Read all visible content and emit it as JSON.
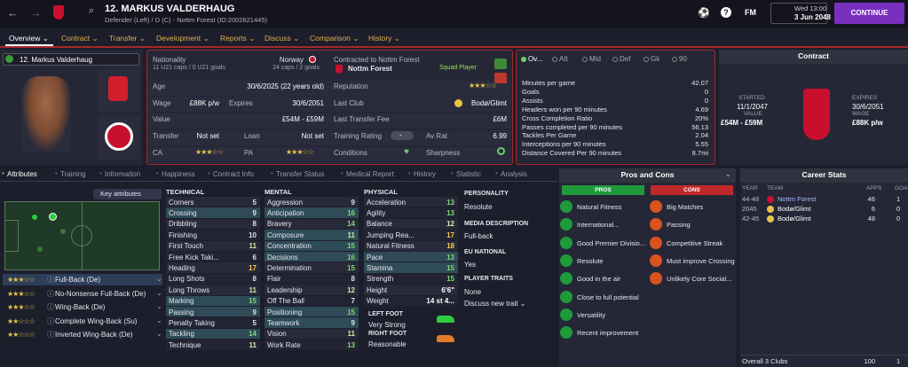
{
  "header": {
    "title": "12. MARKUS VALDERHAUG",
    "subtitle": "Defender (Left) / D (C) - Nottm Forest (ID:2002621445)",
    "logo": "FM",
    "day": "Wed 13:00",
    "date": "3 Jun 2048",
    "continue": "CONTINUE"
  },
  "nav": [
    "Overview",
    "Contract",
    "Transfer",
    "Development",
    "Reports",
    "Discuss",
    "Comparison",
    "History"
  ],
  "player_select": "12. Markus Valderhaug",
  "info": {
    "nationality_label": "Nationality",
    "nationality": "Norway",
    "u21": "11 U21 caps / 0 U21 goals",
    "caps": "24 caps / 2 goals",
    "contracted": "Contracted to Nottm Forest",
    "club": "Nottm Forest",
    "status": "Squad Player",
    "age_label": "Age",
    "age": "30/6/2025 (22 years old)",
    "wage_label": "Wage",
    "wage": "£88K p/w",
    "expires_label": "Expires",
    "expires": "30/6/2051",
    "value_label": "Value",
    "value": "£54M - £59M",
    "transfer_label": "Transfer",
    "transfer": "Not set",
    "loan_label": "Loan",
    "loan": "Not set",
    "ca_label": "CA",
    "pa_label": "PA",
    "reputation_label": "Reputation",
    "last_club_label": "Last Club",
    "last_club": "Bodø/Glimt",
    "fee_label": "Last Transfer Fee",
    "fee": "£6M",
    "training_label": "Training Rating",
    "training": "-",
    "av_rat_label": "Av Rat",
    "av_rat": "6.99",
    "conditions_label": "Conditions",
    "sharpness_label": "Sharpness"
  },
  "stats": {
    "tabs": [
      "Ov...",
      "Att",
      "Mid",
      "Def",
      "Gk",
      "90"
    ],
    "rows": [
      {
        "label": "Minutes per game",
        "value": 42.07
      },
      {
        "label": "Goals",
        "value": 0
      },
      {
        "label": "Assists",
        "value": 0
      },
      {
        "label": "Headers won per 90 minutes",
        "value": 4.69
      },
      {
        "label": "Cross Completion Ratio",
        "value": "20%"
      },
      {
        "label": "Passes completed per 90 minutes",
        "value": 56.13
      },
      {
        "label": "Tackles Per Game",
        "value": 2.04
      },
      {
        "label": "Interceptions per 90 minutes",
        "value": 5.55
      },
      {
        "label": "Distance Covered Per 90 minutes",
        "value": "8.7mi"
      }
    ]
  },
  "contract": {
    "title": "Contract",
    "started_label": "STARTED",
    "started": "11/1/2047",
    "value_label": "VALUE",
    "value": "£54M - £59M",
    "expires_label": "EXPIRES",
    "expires": "30/6/2051",
    "wage_label": "WAGE",
    "wage": "£88K p/w"
  },
  "subtabs": [
    "Attributes",
    "Training",
    "Information",
    "Happiness",
    "Contract Info",
    "Transfer Status",
    "Medical Report",
    "History",
    "Statistic",
    "Analysis"
  ],
  "key_attributes": "Key attributes",
  "roles": [
    "Full-Back (De)",
    "No-Nonsense Full-Back (De)",
    "Wing-Back (De)",
    "Complete Wing-Back (Su)",
    "Inverted Wing-Back (De)"
  ],
  "attributes": {
    "technical": {
      "title": "TECHNICAL",
      "rows": [
        {
          "name": "Corners",
          "value": 5
        },
        {
          "name": "Crossing",
          "value": 9
        },
        {
          "name": "Dribbling",
          "value": 8
        },
        {
          "name": "Finishing",
          "value": 10
        },
        {
          "name": "First Touch",
          "value": 11
        },
        {
          "name": "Free Kick Taki...",
          "value": 6
        },
        {
          "name": "Heading",
          "value": 17
        },
        {
          "name": "Long Shots",
          "value": 8
        },
        {
          "name": "Long Throws",
          "value": 11
        },
        {
          "name": "Marking",
          "value": 15
        },
        {
          "name": "Passing",
          "value": 9
        },
        {
          "name": "Penalty Taking",
          "value": 5
        },
        {
          "name": "Tackling",
          "value": 14
        },
        {
          "name": "Technique",
          "value": 11
        }
      ]
    },
    "mental": {
      "title": "MENTAL",
      "rows": [
        {
          "name": "Aggression",
          "value": 9
        },
        {
          "name": "Anticipation",
          "value": 16
        },
        {
          "name": "Bravery",
          "value": 14
        },
        {
          "name": "Composure",
          "value": 11
        },
        {
          "name": "Concentration",
          "value": 15
        },
        {
          "name": "Decisions",
          "value": 16
        },
        {
          "name": "Determination",
          "value": 15
        },
        {
          "name": "Flair",
          "value": 8
        },
        {
          "name": "Leadership",
          "value": 12
        },
        {
          "name": "Off The Ball",
          "value": 7
        },
        {
          "name": "Positioning",
          "value": 15
        },
        {
          "name": "Teamwork",
          "value": 9
        },
        {
          "name": "Vision",
          "value": 11
        },
        {
          "name": "Work Rate",
          "value": 13
        }
      ]
    },
    "physical": {
      "title": "PHYSICAL",
      "rows": [
        {
          "name": "Acceleration",
          "value": 13
        },
        {
          "name": "Agility",
          "value": 13
        },
        {
          "name": "Balance",
          "value": 12
        },
        {
          "name": "Jumping Rea...",
          "value": 17
        },
        {
          "name": "Natural Fitness",
          "value": 18
        },
        {
          "name": "Pace",
          "value": 13
        },
        {
          "name": "Stamina",
          "value": 15
        },
        {
          "name": "Strength",
          "value": 15
        },
        {
          "name": "Height",
          "value": "6'6\""
        },
        {
          "name": "Weight",
          "value": "14 st 4..."
        }
      ],
      "left_foot_label": "LEFT FOOT",
      "left_foot": "Very Strong",
      "right_foot_label": "RIGHT FOOT",
      "right_foot": "Reasonable"
    }
  },
  "side": [
    {
      "title": "PERSONALITY",
      "value": "Resolute"
    },
    {
      "title": "MEDIA DESCRIPTION",
      "value": "Full-back"
    },
    {
      "title": "EU NATIONAL",
      "value": "Yes"
    },
    {
      "title": "PLAYER TRAITS",
      "value": "None"
    }
  ],
  "discuss_trait": "Discuss new trait",
  "pros_cons": {
    "title": "Pros and Cons",
    "pros_label": "PROS",
    "cons_label": "CONS",
    "pros": [
      "Natural Fitness",
      "International...",
      "Good Premier Divisio...",
      "Resolute",
      "Good in the air",
      "Close to full potential",
      "Versatility",
      "Recent improvement"
    ],
    "cons": [
      "Big Matches",
      "Passing",
      "Competitive Streak",
      "Must improve Crossing",
      "Unlikely Core Social..."
    ]
  },
  "career": {
    "title": "Career Stats",
    "headers": [
      "YEAR",
      "TEAM",
      "APPS",
      "GOA"
    ],
    "rows": [
      {
        "year": "44-48",
        "team": "Nottm Forest",
        "apps": 46,
        "goals": 1
      },
      {
        "year": "2045",
        "team": "Bodø/Glimt",
        "apps": 6,
        "goals": 0
      },
      {
        "year": "42-45",
        "team": "Bodø/Glimt",
        "apps": 48,
        "goals": 0
      }
    ],
    "total": {
      "label": "Overall 3 Clubs",
      "apps": 100,
      "goals": 1
    }
  }
}
